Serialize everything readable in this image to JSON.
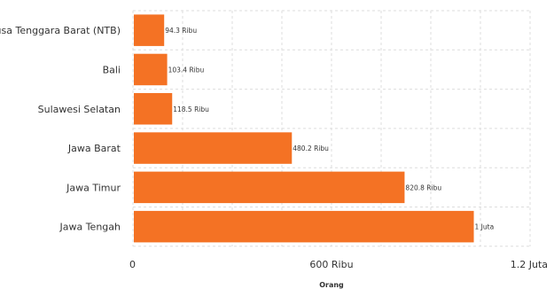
{
  "chart_data": {
    "type": "bar",
    "orientation": "horizontal",
    "categories": [
      "Nusa Tenggara Barat (NTB)",
      "Bali",
      "Sulawesi Selatan",
      "Jawa Barat",
      "Jawa Timur",
      "Jawa Tengah"
    ],
    "values": [
      94300,
      103400,
      118500,
      480200,
      820800,
      1030000
    ],
    "data_labels": [
      "94.3 Ribu",
      "103.4 Ribu",
      "118.5 Ribu",
      "480.2 Ribu",
      "820.8 Ribu",
      "1 Juta"
    ],
    "xlim": [
      0,
      1200000
    ],
    "x_ticks": [
      0,
      600000,
      1200000
    ],
    "x_tick_labels": [
      "0",
      "600 Ribu",
      "1.2 Juta"
    ],
    "xlabel": "Orang",
    "grid": true,
    "bar_color": "#F47224",
    "grid_color": "#DDDDDD"
  }
}
